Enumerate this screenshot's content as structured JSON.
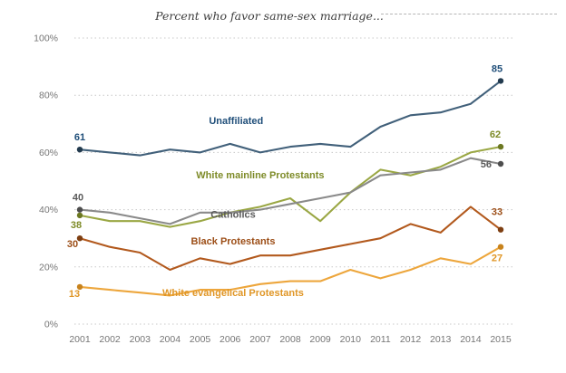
{
  "chart_data": {
    "type": "line",
    "title": "Percent who favor same-sex marriage...",
    "x": [
      2001,
      2002,
      2003,
      2004,
      2005,
      2006,
      2007,
      2008,
      2009,
      2010,
      2011,
      2012,
      2013,
      2014,
      2015
    ],
    "x_tick_labels": [
      "2001",
      "2002",
      "2003",
      "2004",
      "2005",
      "2006",
      "2007",
      "2008",
      "2009",
      "2010",
      "2011",
      "2012",
      "2013",
      "2014",
      "2015"
    ],
    "ylim": [
      0,
      100
    ],
    "yticks": [
      0,
      20,
      40,
      60,
      80,
      100
    ],
    "ytick_labels": [
      "0%",
      "20%",
      "40%",
      "60%",
      "80%",
      "100%"
    ],
    "grid": "horizontal-dotted",
    "grid_color": "#c8c8c8",
    "axis_text_color": "#757575",
    "legend": "inline-series-labels",
    "series": [
      {
        "name": "Unaffiliated",
        "color": "#41607a",
        "label_color": "#1f4e79",
        "marker_color": "#223a4e",
        "values": [
          61,
          60,
          59,
          61,
          60,
          63,
          60,
          62,
          63,
          62,
          69,
          73,
          74,
          77,
          85
        ],
        "endpoint_labels": {
          "start": "61",
          "end": "85"
        },
        "name_label_anchor": {
          "x": 2006.2,
          "y": 70
        },
        "start_label_offset": {
          "dx": 0,
          "dy": -10,
          "anchor": "middle"
        },
        "end_label_offset": {
          "dx": -4,
          "dy": -10,
          "anchor": "middle"
        }
      },
      {
        "name": "White mainline Protestants",
        "color": "#9aa744",
        "label_color": "#7e8b28",
        "marker_color": "#6c7821",
        "values": [
          38,
          36,
          36,
          34,
          36,
          39,
          41,
          44,
          36,
          46,
          54,
          52,
          55,
          60,
          62
        ],
        "endpoint_labels": {
          "start": "38",
          "end": "62"
        },
        "name_label_anchor": {
          "x": 2007,
          "y": 51
        },
        "start_label_offset": {
          "dx": -4,
          "dy": 14,
          "anchor": "middle"
        },
        "end_label_offset": {
          "dx": -6,
          "dy": -10,
          "anchor": "middle"
        }
      },
      {
        "name": "Catholics",
        "color": "#8a8a8a",
        "label_color": "#595959",
        "marker_color": "#4d4d4d",
        "values": [
          40,
          39,
          37,
          35,
          39,
          39,
          40,
          42,
          44,
          46,
          52,
          53,
          54,
          58,
          56
        ],
        "endpoint_labels": {
          "start": "40",
          "end": "56"
        },
        "name_label_anchor": {
          "x": 2006.1,
          "y": 37.2
        },
        "start_label_offset": {
          "dx": -2,
          "dy": -10,
          "anchor": "middle"
        },
        "end_label_offset": {
          "dx": -10,
          "dy": 4,
          "anchor": "end"
        }
      },
      {
        "name": "Black Protestants",
        "color": "#b2591d",
        "label_color": "#9c4e17",
        "marker_color": "#7e3f12",
        "values": [
          30,
          27,
          25,
          19,
          23,
          21,
          24,
          24,
          26,
          28,
          30,
          35,
          32,
          41,
          33
        ],
        "endpoint_labels": {
          "start": "30",
          "end": "33"
        },
        "name_label_anchor": {
          "x": 2006.1,
          "y": 27.8
        },
        "start_label_offset": {
          "dx": -8,
          "dy": 10,
          "anchor": "middle"
        },
        "end_label_offset": {
          "dx": -4,
          "dy": -16,
          "anchor": "middle"
        }
      },
      {
        "name": "White evangelical Protestants",
        "color": "#eda63c",
        "label_color": "#e09626",
        "marker_color": "#c8831d",
        "values": [
          13,
          12,
          11,
          10,
          12,
          12,
          14,
          15,
          15,
          19,
          16,
          19,
          23,
          21,
          27
        ],
        "endpoint_labels": {
          "start": "13",
          "end": "27"
        },
        "name_label_anchor": {
          "x": 2006.1,
          "y": 9.8
        },
        "start_label_offset": {
          "dx": -6,
          "dy": 11,
          "anchor": "middle"
        },
        "end_label_offset": {
          "dx": -4,
          "dy": 16,
          "anchor": "middle"
        }
      }
    ]
  }
}
